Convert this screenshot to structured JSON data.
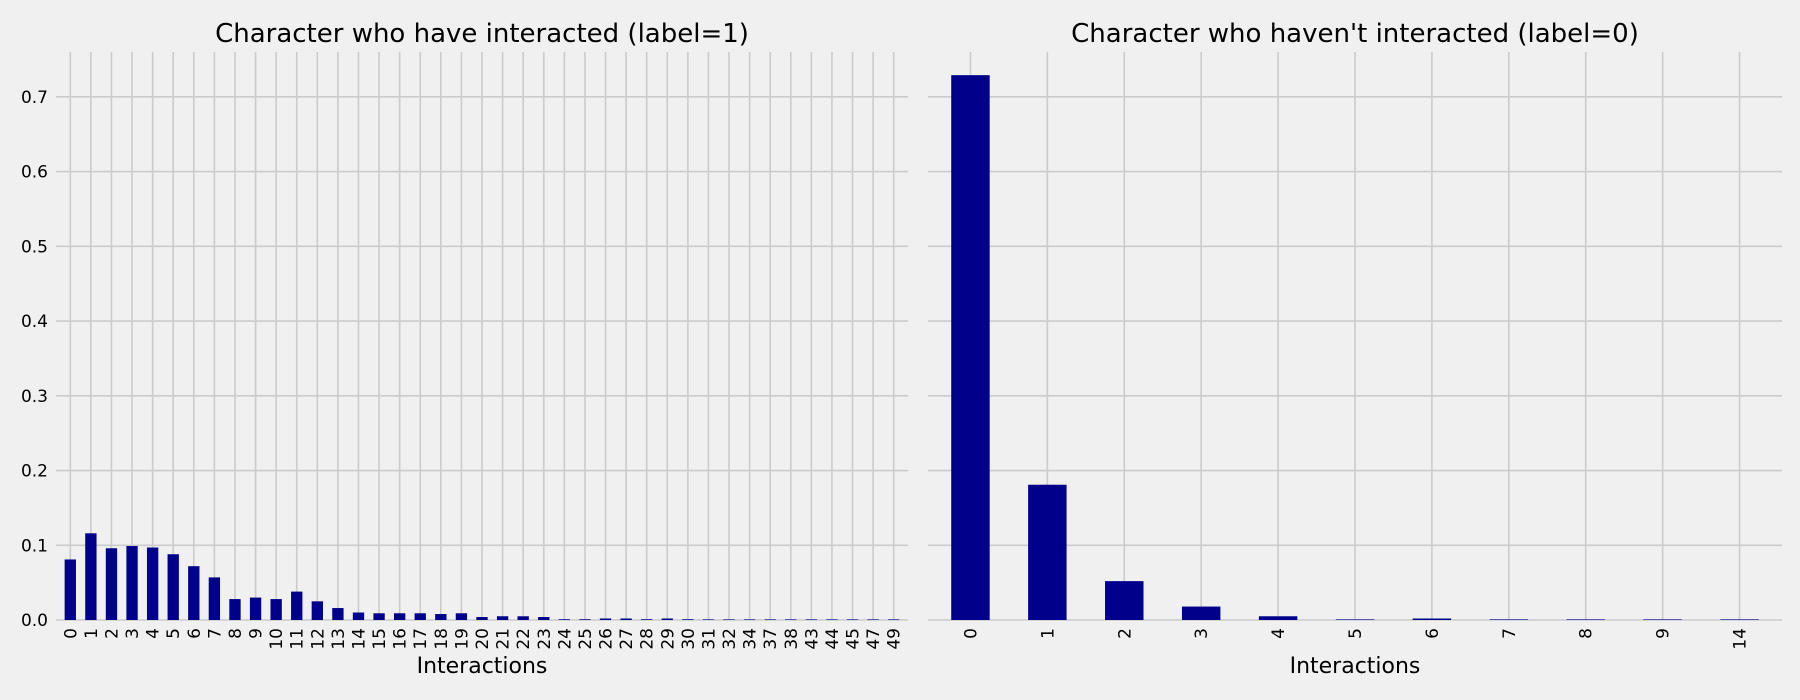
{
  "colors": {
    "background": "#f0f0f0",
    "bar": "#00008b",
    "grid": "#cbcbcb"
  },
  "chart_data": [
    {
      "type": "bar",
      "title": "Character who have interacted (label=1)",
      "xlabel": "Interactions",
      "ylabel": "",
      "ylim": [
        0,
        0.76
      ],
      "yticks": [
        0.0,
        0.1,
        0.2,
        0.3,
        0.4,
        0.5,
        0.6,
        0.7
      ],
      "ytick_labels": [
        "0.0",
        "0.1",
        "0.2",
        "0.3",
        "0.4",
        "0.5",
        "0.6",
        "0.7"
      ],
      "grid": true,
      "categories": [
        "0",
        "1",
        "2",
        "3",
        "4",
        "5",
        "6",
        "7",
        "8",
        "9",
        "10",
        "11",
        "12",
        "13",
        "14",
        "15",
        "16",
        "17",
        "18",
        "19",
        "20",
        "21",
        "22",
        "23",
        "24",
        "25",
        "26",
        "27",
        "28",
        "29",
        "30",
        "31",
        "32",
        "34",
        "37",
        "38",
        "43",
        "44",
        "45",
        "47",
        "49"
      ],
      "values": [
        0.081,
        0.116,
        0.096,
        0.099,
        0.097,
        0.088,
        0.072,
        0.057,
        0.028,
        0.03,
        0.028,
        0.038,
        0.025,
        0.016,
        0.01,
        0.009,
        0.009,
        0.009,
        0.008,
        0.009,
        0.004,
        0.005,
        0.005,
        0.004,
        0.001,
        0.001,
        0.002,
        0.002,
        0.001,
        0.002,
        0.001,
        0.0005,
        0.0005,
        0.0005,
        0.0005,
        0.0005,
        0.0005,
        0.0005,
        0.0005,
        0.0005,
        0.0005
      ]
    },
    {
      "type": "bar",
      "title": "Character who haven't interacted (label=0)",
      "xlabel": "Interactions",
      "ylabel": "",
      "ylim": [
        0,
        0.76
      ],
      "yticks": [
        0.0,
        0.1,
        0.2,
        0.3,
        0.4,
        0.5,
        0.6,
        0.7
      ],
      "ytick_labels": [],
      "grid": true,
      "categories": [
        "0",
        "1",
        "2",
        "3",
        "4",
        "5",
        "6",
        "7",
        "8",
        "9",
        "14"
      ],
      "values": [
        0.729,
        0.181,
        0.052,
        0.018,
        0.005,
        0.0005,
        0.002,
        0.0003,
        0.0003,
        0.0003,
        0.0003
      ]
    }
  ]
}
